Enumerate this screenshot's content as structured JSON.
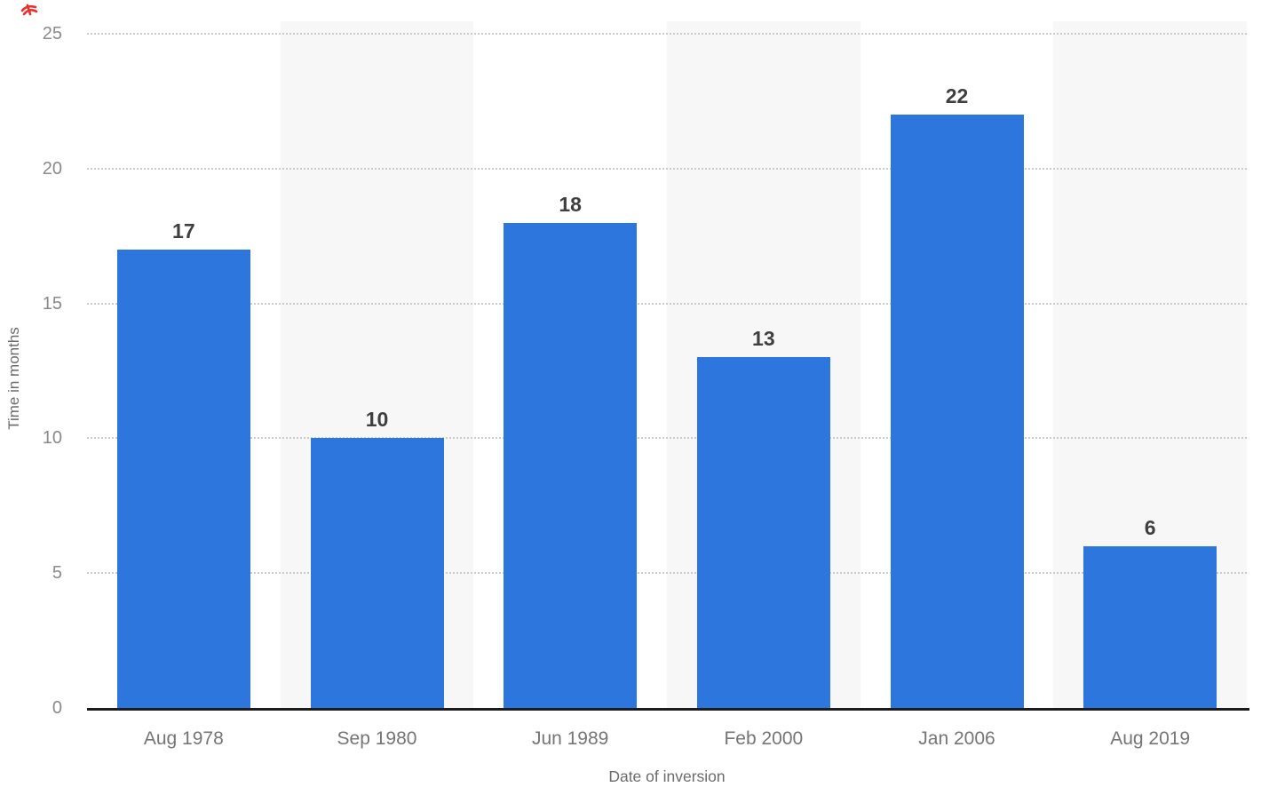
{
  "chart_data": {
    "type": "bar",
    "categories": [
      "Aug 1978",
      "Sep 1980",
      "Jun 1989",
      "Feb 2000",
      "Jan 2006",
      "Aug 2019"
    ],
    "values": [
      17,
      10,
      18,
      13,
      22,
      6
    ],
    "value_labels": [
      "17",
      "10",
      "18",
      "13",
      "22",
      "6"
    ],
    "xlabel": "Date of inversion",
    "ylabel": "Time in months",
    "ylim": [
      0,
      25
    ],
    "yticks": [
      0,
      5,
      10,
      15,
      20,
      25
    ],
    "ytick_labels": [
      "0",
      "5",
      "10",
      "15",
      "20",
      "25"
    ],
    "grid": "horizontal-dotted",
    "legend": "none",
    "plot_background": "alternating-column-stripes"
  },
  "colors": {
    "bar": "#2c76dd",
    "stripe": "#f7f7f7",
    "gridline": "#cccccc",
    "axis_line": "#1c1c1c",
    "tick_label": "#8a8a8a",
    "category_label": "#757575",
    "value_label": "#3f3f3f",
    "axis_title": "#6b6b6b",
    "annotation_red": "#e8312a",
    "background": "#ffffff"
  },
  "annotations": {
    "red_mark": "small red scribble, top-left corner"
  }
}
